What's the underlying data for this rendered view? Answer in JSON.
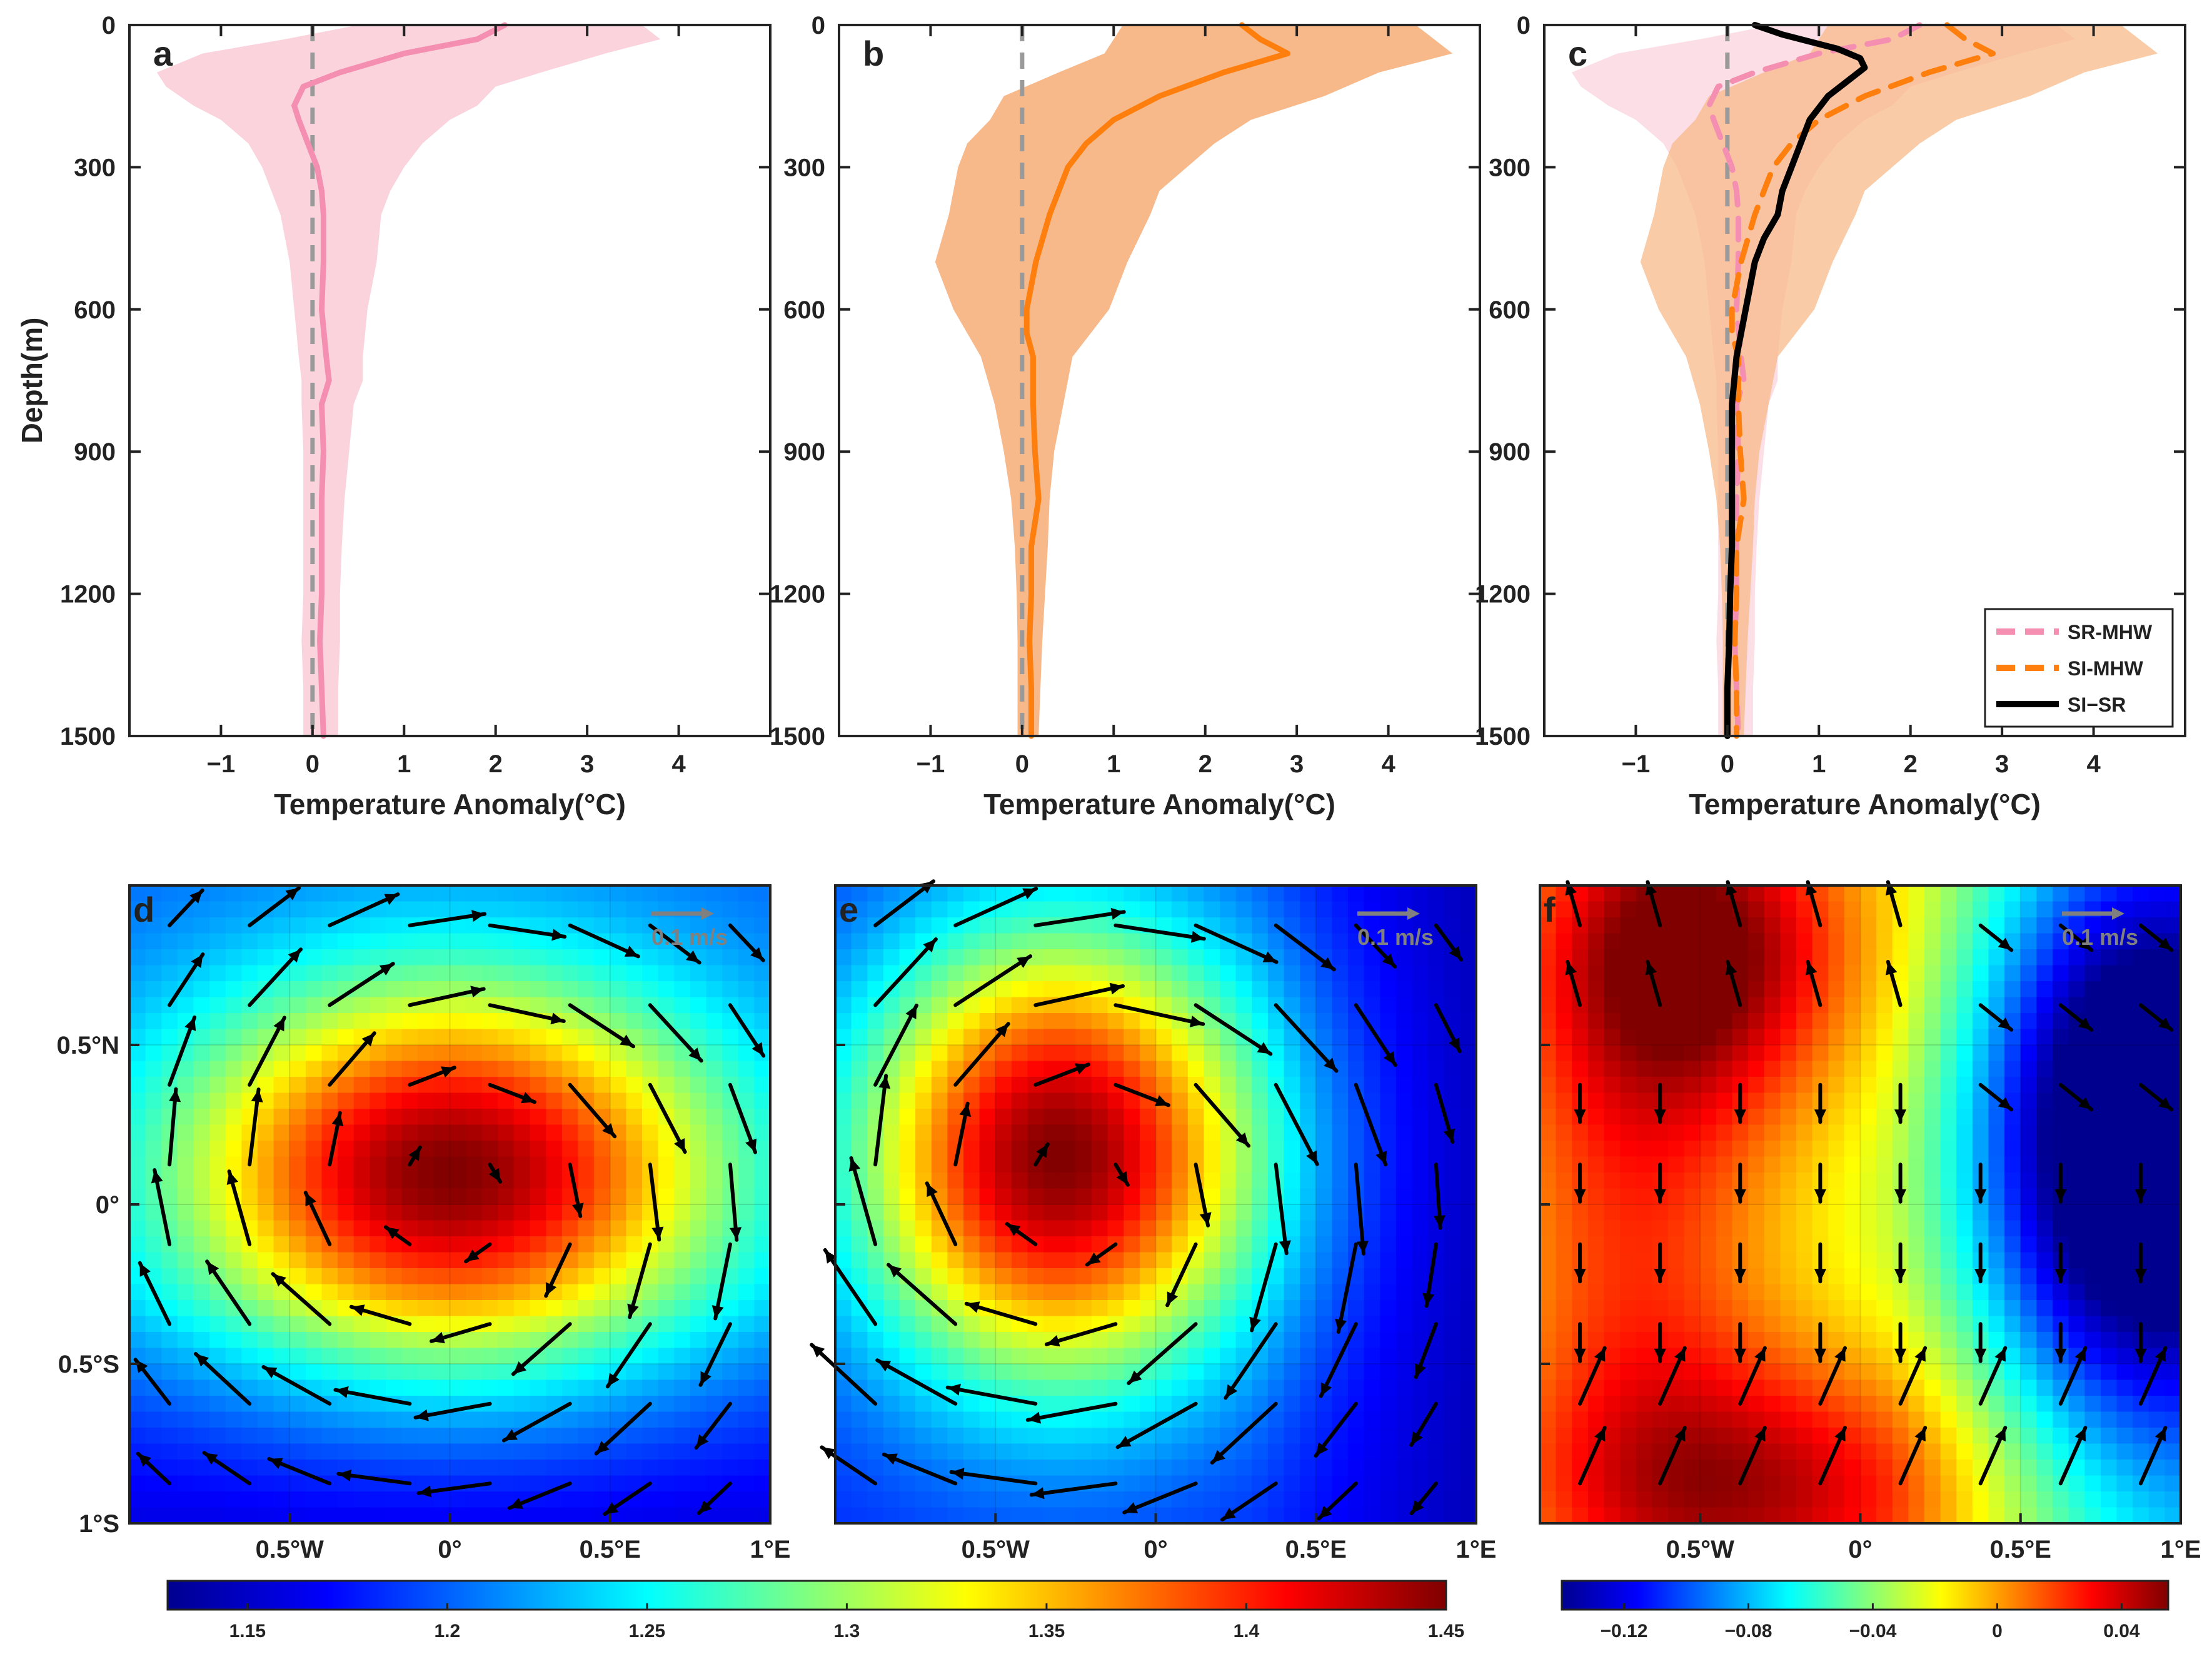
{
  "figure": {
    "colors": {
      "sr_line": "#f48fb1",
      "sr_band": "#fbd3dd",
      "si_line": "#ff7f0e",
      "si_band": "#f8b98a",
      "diff_line": "#000000",
      "zero_line": "#9a9a9a",
      "quiver": "#000000",
      "ref_quiver": "#808080"
    }
  },
  "chart_data": [
    {
      "panel": "a",
      "type": "line",
      "xlabel": "Temperature Anomaly(°C)",
      "ylabel": "Depth(m)",
      "xlim": [
        -2,
        5
      ],
      "ylim": [
        0,
        1500
      ],
      "xticks": [
        -1,
        0,
        1,
        2,
        3,
        4
      ],
      "xtick_labels": [
        "−1",
        "0",
        "1",
        "2",
        "3",
        "4"
      ],
      "yticks": [
        0,
        300,
        600,
        900,
        1200,
        1500
      ],
      "ytick_labels": [
        "0",
        "300",
        "600",
        "900",
        "1200",
        "1500"
      ],
      "zero_line": 0,
      "series": [
        {
          "name": "SR-MHW",
          "style": "solid",
          "color": "#f48fb1",
          "depth": [
            0,
            30,
            60,
            100,
            130,
            170,
            200,
            250,
            300,
            350,
            400,
            500,
            600,
            700,
            750,
            800,
            900,
            1000,
            1100,
            1200,
            1300,
            1400,
            1500
          ],
          "value": [
            2.1,
            1.8,
            1.0,
            0.3,
            -0.1,
            -0.2,
            -0.15,
            -0.05,
            0.05,
            0.1,
            0.12,
            0.12,
            0.1,
            0.15,
            0.18,
            0.1,
            0.12,
            0.1,
            0.1,
            0.1,
            0.08,
            0.1,
            0.12
          ],
          "band_lower": [
            0.5,
            -0.3,
            -1.2,
            -1.7,
            -1.6,
            -1.3,
            -1.0,
            -0.7,
            -0.55,
            -0.45,
            -0.35,
            -0.25,
            -0.2,
            -0.15,
            -0.12,
            -0.12,
            -0.1,
            -0.1,
            -0.1,
            -0.1,
            -0.12,
            -0.1,
            -0.1
          ],
          "band_upper": [
            3.6,
            3.8,
            3.2,
            2.5,
            2.0,
            1.8,
            1.5,
            1.2,
            1.0,
            0.85,
            0.75,
            0.7,
            0.6,
            0.55,
            0.55,
            0.45,
            0.4,
            0.35,
            0.32,
            0.3,
            0.3,
            0.28,
            0.28
          ]
        }
      ]
    },
    {
      "panel": "b",
      "type": "line",
      "xlabel": "Temperature Anomaly(°C)",
      "ylabel": "",
      "xlim": [
        -2,
        5
      ],
      "ylim": [
        0,
        1500
      ],
      "xticks": [
        -1,
        0,
        1,
        2,
        3,
        4
      ],
      "xtick_labels": [
        "−1",
        "0",
        "1",
        "2",
        "3",
        "4"
      ],
      "yticks": [
        0,
        300,
        600,
        900,
        1200,
        1500
      ],
      "zero_line": 0,
      "series": [
        {
          "name": "SI-MHW",
          "style": "solid",
          "color": "#ff7f0e",
          "depth": [
            0,
            30,
            60,
            100,
            150,
            200,
            250,
            300,
            350,
            400,
            500,
            600,
            650,
            700,
            800,
            900,
            1000,
            1100,
            1200,
            1300,
            1400,
            1500
          ],
          "value": [
            2.4,
            2.6,
            2.9,
            2.2,
            1.5,
            1.0,
            0.7,
            0.5,
            0.4,
            0.3,
            0.15,
            0.05,
            0.05,
            0.12,
            0.12,
            0.14,
            0.18,
            0.1,
            0.1,
            0.08,
            0.1,
            0.1
          ],
          "band_lower": [
            1.1,
            1.0,
            0.9,
            0.4,
            -0.2,
            -0.35,
            -0.6,
            -0.7,
            -0.75,
            -0.8,
            -0.95,
            -0.75,
            -0.6,
            -0.45,
            -0.3,
            -0.2,
            -0.12,
            -0.08,
            -0.06,
            -0.05,
            -0.05,
            -0.05
          ],
          "band_upper": [
            4.3,
            4.5,
            4.7,
            3.9,
            3.3,
            2.5,
            2.1,
            1.8,
            1.5,
            1.4,
            1.15,
            0.95,
            0.75,
            0.55,
            0.45,
            0.35,
            0.3,
            0.28,
            0.25,
            0.22,
            0.2,
            0.18
          ]
        }
      ]
    },
    {
      "panel": "c",
      "type": "line",
      "xlabel": "Temperature Anomaly(°C)",
      "ylabel": "",
      "xlim": [
        -2,
        5
      ],
      "ylim": [
        0,
        1500
      ],
      "xticks": [
        -1,
        0,
        1,
        2,
        3,
        4
      ],
      "xtick_labels": [
        "−1",
        "0",
        "1",
        "2",
        "3",
        "4"
      ],
      "yticks": [
        0,
        300,
        600,
        900,
        1200,
        1500
      ],
      "zero_line": 0,
      "legend": {
        "position": "bottom-right",
        "entries": [
          "SR-MHW",
          "SI-MHW",
          "SI−SR"
        ]
      },
      "series": [
        {
          "name": "SR-MHW",
          "style": "dashed",
          "color": "#f48fb1",
          "depth": [
            0,
            30,
            60,
            100,
            130,
            170,
            200,
            250,
            300,
            350,
            400,
            500,
            600,
            700,
            750,
            800,
            900,
            1000,
            1100,
            1200,
            1300,
            1400,
            1500
          ],
          "value": [
            2.1,
            1.8,
            1.0,
            0.3,
            -0.1,
            -0.2,
            -0.15,
            -0.05,
            0.05,
            0.1,
            0.12,
            0.12,
            0.1,
            0.15,
            0.18,
            0.1,
            0.12,
            0.1,
            0.1,
            0.1,
            0.08,
            0.1,
            0.12
          ],
          "band_lower": [
            0.5,
            -0.3,
            -1.2,
            -1.7,
            -1.6,
            -1.3,
            -1.0,
            -0.7,
            -0.55,
            -0.45,
            -0.35,
            -0.25,
            -0.2,
            -0.15,
            -0.12,
            -0.12,
            -0.1,
            -0.1,
            -0.1,
            -0.1,
            -0.12,
            -0.1,
            -0.1
          ],
          "band_upper": [
            3.6,
            3.8,
            3.2,
            2.5,
            2.0,
            1.8,
            1.5,
            1.2,
            1.0,
            0.85,
            0.75,
            0.7,
            0.6,
            0.55,
            0.55,
            0.45,
            0.4,
            0.35,
            0.32,
            0.3,
            0.3,
            0.28,
            0.28
          ]
        },
        {
          "name": "SI-MHW",
          "style": "dashed",
          "color": "#ff7f0e",
          "depth": [
            0,
            30,
            60,
            100,
            150,
            200,
            250,
            300,
            350,
            400,
            500,
            600,
            650,
            700,
            800,
            900,
            1000,
            1100,
            1200,
            1300,
            1400,
            1500
          ],
          "value": [
            2.4,
            2.6,
            2.9,
            2.2,
            1.5,
            1.0,
            0.7,
            0.5,
            0.4,
            0.3,
            0.15,
            0.05,
            0.05,
            0.12,
            0.12,
            0.14,
            0.18,
            0.1,
            0.1,
            0.08,
            0.1,
            0.1
          ],
          "band_lower": [
            1.1,
            1.0,
            0.9,
            0.4,
            -0.2,
            -0.35,
            -0.6,
            -0.7,
            -0.75,
            -0.8,
            -0.95,
            -0.75,
            -0.6,
            -0.45,
            -0.3,
            -0.2,
            -0.12,
            -0.08,
            -0.06,
            -0.05,
            -0.05,
            -0.05
          ],
          "band_upper": [
            4.3,
            4.5,
            4.7,
            3.9,
            3.3,
            2.5,
            2.1,
            1.8,
            1.5,
            1.4,
            1.15,
            0.95,
            0.75,
            0.55,
            0.45,
            0.35,
            0.3,
            0.28,
            0.25,
            0.22,
            0.2,
            0.18
          ]
        },
        {
          "name": "SI−SR",
          "style": "solid",
          "color": "#000000",
          "depth": [
            0,
            20,
            50,
            70,
            90,
            120,
            150,
            200,
            250,
            300,
            350,
            400,
            450,
            500,
            600,
            700,
            800,
            900,
            1000,
            1100,
            1200,
            1300,
            1400,
            1500
          ],
          "value": [
            0.3,
            0.6,
            1.2,
            1.45,
            1.5,
            1.3,
            1.1,
            0.9,
            0.8,
            0.7,
            0.6,
            0.55,
            0.4,
            0.3,
            0.2,
            0.1,
            0.05,
            0.05,
            0.05,
            0.05,
            0.03,
            0.02,
            0.0,
            0.0
          ]
        }
      ]
    },
    {
      "panel": "d",
      "type": "heatmap",
      "xlim": [
        -1,
        1
      ],
      "ylim": [
        -1,
        1
      ],
      "xticks": [
        -0.5,
        0,
        0.5,
        1
      ],
      "xtick_labels": [
        "0.5°W",
        "0°",
        "0.5°E",
        "1°E"
      ],
      "yticks": [
        0.5,
        0,
        -0.5,
        -1
      ],
      "ytick_labels": [
        "0.5°N",
        "0°",
        "0.5°S",
        "1°S"
      ],
      "colormap": "jet",
      "clim": [
        1.13,
        1.45
      ],
      "colorbar_ticks": [
        1.15,
        1.2,
        1.25,
        1.3,
        1.35,
        1.4,
        1.45
      ],
      "colorbar_labels": [
        "1.15",
        "1.2",
        "1.25",
        "1.3",
        "1.35",
        "1.4",
        "1.45"
      ],
      "field": {
        "kind": "gaussian",
        "center": [
          0.0,
          0.1
        ],
        "sigma": [
          0.6,
          0.42
        ],
        "base": 1.2,
        "amp": 0.25,
        "south_gradient": 0.06
      },
      "quiver": {
        "kind": "anticyclonic",
        "center": [
          0.0,
          0.05
        ],
        "strength": 0.11
      },
      "reference_vector": "0.1 m/s"
    },
    {
      "panel": "e",
      "type": "heatmap",
      "xlim": [
        -1,
        1
      ],
      "ylim": [
        -1,
        1
      ],
      "xticks": [
        -0.5,
        0,
        0.5,
        1
      ],
      "xtick_labels": [
        "0.5°W",
        "0°",
        "0.5°E",
        "1°E"
      ],
      "yticks": [
        0.5,
        0,
        -0.5,
        -1
      ],
      "colormap": "jet",
      "clim": [
        1.13,
        1.45
      ],
      "field": {
        "kind": "gaussian",
        "center": [
          -0.3,
          0.15
        ],
        "sigma": [
          0.45,
          0.5
        ],
        "base": 1.18,
        "amp": 0.27,
        "east_gradient": 0.05
      },
      "quiver": {
        "kind": "anticyclonic",
        "center": [
          -0.25,
          0.05
        ],
        "strength": 0.13
      },
      "reference_vector": "0.1 m/s"
    },
    {
      "panel": "f",
      "type": "heatmap",
      "xlim": [
        -1,
        1
      ],
      "ylim": [
        -1,
        1
      ],
      "xticks": [
        -0.5,
        0,
        0.5,
        1
      ],
      "xtick_labels": [
        "0.5°W",
        "0°",
        "0.5°E",
        "1°E"
      ],
      "yticks": [
        0.5,
        0,
        -0.5,
        -1
      ],
      "colormap": "jet",
      "clim": [
        -0.14,
        0.055
      ],
      "colorbar_ticks": [
        -0.12,
        -0.08,
        -0.04,
        0,
        0.04
      ],
      "colorbar_labels": [
        "−0.12",
        "−0.08",
        "−0.04",
        "0",
        "0.04"
      ],
      "field": {
        "kind": "difference",
        "warm_center": [
          -0.5,
          0.8
        ],
        "warm_center2": [
          -0.3,
          -0.9
        ],
        "cold_center": [
          0.85,
          0.2
        ]
      },
      "quiver": {
        "kind": "southward",
        "strength": 0.09
      },
      "reference_vector": "0.1 m/s"
    }
  ]
}
